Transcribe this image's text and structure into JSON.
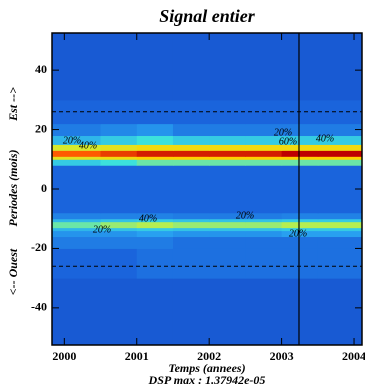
{
  "chart_data": {
    "type": "heatmap",
    "title": "Signal entier",
    "xlabel": "Temps (annees)",
    "subtitle": "DSP max :  1.37942e-05",
    "ylabels": [
      "<-- Ouest",
      "Periodes (mois)",
      "Est -->"
    ],
    "xlim": [
      1999.83,
      2004.11
    ],
    "ylim": [
      -52.5,
      52.5
    ],
    "xticks": [
      2000,
      2001,
      2002,
      2003,
      2004
    ],
    "yticks": [
      -40,
      -20,
      0,
      20,
      40
    ],
    "x_edges": [
      1999.83,
      2000.5,
      2001,
      2001.5,
      2002,
      2002.5,
      2003,
      2003.5,
      2004.11
    ],
    "y_edges": [
      -52.5,
      -30,
      -20,
      -16,
      -14,
      -13,
      -11,
      -10,
      -8,
      0,
      8,
      10,
      11,
      13,
      15,
      18,
      22,
      30,
      52.5
    ],
    "z": [
      [
        8,
        8,
        8,
        8,
        8,
        8,
        8,
        8
      ],
      [
        10,
        10,
        12,
        12,
        12,
        12,
        12,
        12
      ],
      [
        14,
        14,
        14,
        12,
        12,
        12,
        12,
        12
      ],
      [
        18,
        18,
        20,
        18,
        18,
        18,
        20,
        20
      ],
      [
        25,
        28,
        30,
        28,
        28,
        28,
        30,
        30
      ],
      [
        40,
        45,
        48,
        45,
        45,
        45,
        48,
        48
      ],
      [
        25,
        28,
        30,
        28,
        28,
        28,
        30,
        30
      ],
      [
        15,
        15,
        15,
        14,
        14,
        14,
        15,
        15
      ],
      [
        10,
        10,
        10,
        10,
        10,
        10,
        10,
        10
      ],
      [
        10,
        10,
        10,
        10,
        10,
        10,
        10,
        10
      ],
      [
        30,
        35,
        40,
        40,
        40,
        40,
        40,
        40
      ],
      [
        60,
        65,
        70,
        70,
        70,
        70,
        70,
        70
      ],
      [
        85,
        90,
        95,
        95,
        95,
        95,
        100,
        100
      ],
      [
        55,
        60,
        65,
        65,
        65,
        65,
        65,
        65
      ],
      [
        25,
        30,
        35,
        30,
        30,
        30,
        30,
        30
      ],
      [
        14,
        16,
        18,
        14,
        14,
        14,
        14,
        14
      ],
      [
        10,
        10,
        10,
        10,
        10,
        10,
        10,
        10
      ],
      [
        8,
        8,
        8,
        8,
        8,
        8,
        8,
        8
      ]
    ],
    "hlines": [
      26,
      -26
    ],
    "vline": 2003.24,
    "annotations": [
      "20%",
      "40%",
      "60%",
      "20%",
      "40%",
      "40%",
      "20%",
      "20%",
      "20%"
    ]
  }
}
